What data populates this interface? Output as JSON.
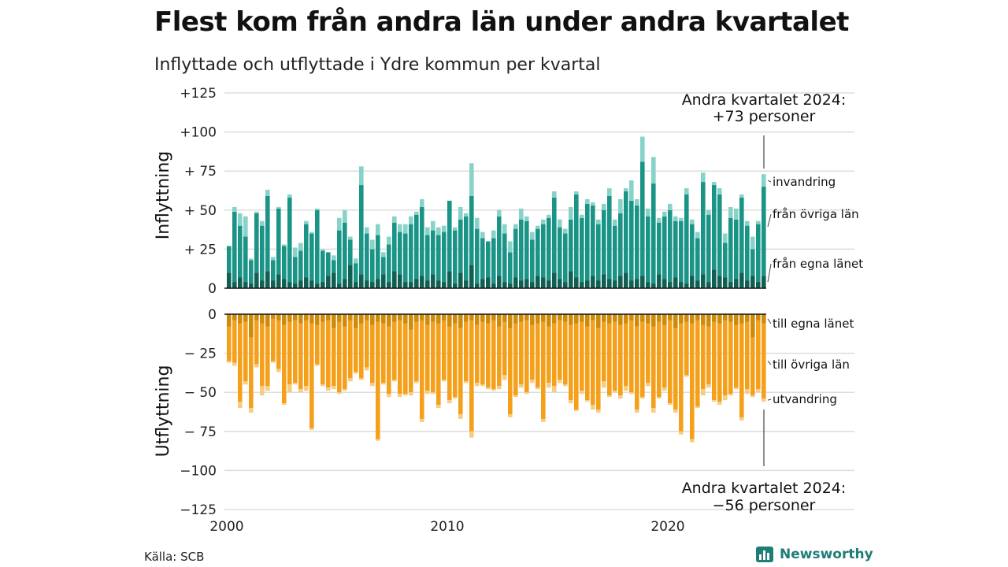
{
  "chart_data": {
    "type": "bar",
    "stacked": true,
    "title": "Flest kom från andra län under andra kvartalet",
    "subtitle": "Inflyttade och utflyttade i Ydre kommun per kvartal",
    "source": "Källa: SCB",
    "brand": "Newsworthy",
    "x_ticks": [
      "2000",
      "2010",
      "2020"
    ],
    "quarters_start": "2000 Q1",
    "quarters_end": "2024 Q2",
    "inflow": {
      "ylabel": "Inflyttning",
      "ylim": [
        0,
        125
      ],
      "y_ticks": [
        {
          "value": 0,
          "label": "0"
        },
        {
          "value": 25,
          "label": "+ 25"
        },
        {
          "value": 50,
          "label": "+ 50"
        },
        {
          "value": 75,
          "label": "+ 75"
        },
        {
          "value": 100,
          "label": "+100"
        },
        {
          "value": 125,
          "label": "+125"
        }
      ],
      "annotation_line1": "Andra kvartalet 2024:",
      "annotation_line2": "+73 personer",
      "series": [
        {
          "name": "från egna länet",
          "color": "#115e52",
          "values": [
            10,
            4,
            7,
            4,
            3,
            10,
            5,
            11,
            5,
            9,
            6,
            4,
            3,
            5,
            7,
            5,
            3,
            4,
            8,
            10,
            3,
            6,
            15,
            4,
            9,
            5,
            4,
            6,
            9,
            4,
            11,
            9,
            4,
            4,
            6,
            8,
            5,
            9,
            5,
            4,
            11,
            3,
            10,
            5,
            15,
            3,
            6,
            7,
            3,
            8,
            4,
            3,
            7,
            5,
            6,
            4,
            8,
            7,
            5,
            10,
            6,
            4,
            11,
            7,
            4,
            5,
            8,
            5,
            9,
            6,
            5,
            8,
            10,
            5,
            6,
            8,
            4,
            3,
            9,
            6,
            4,
            7,
            4,
            3,
            8,
            5,
            9,
            4,
            12,
            8,
            7,
            4,
            6,
            10,
            5,
            8,
            4,
            8
          ]
        },
        {
          "name": "från övriga län",
          "color": "#1a9486",
          "values": [
            17,
            45,
            33,
            29,
            15,
            38,
            35,
            48,
            13,
            42,
            21,
            54,
            17,
            19,
            34,
            30,
            47,
            20,
            15,
            8,
            34,
            36,
            16,
            12,
            57,
            30,
            21,
            28,
            11,
            24,
            31,
            27,
            31,
            37,
            41,
            44,
            29,
            28,
            29,
            32,
            45,
            34,
            34,
            41,
            44,
            35,
            26,
            23,
            29,
            38,
            31,
            20,
            31,
            39,
            37,
            27,
            30,
            34,
            40,
            48,
            33,
            31,
            33,
            53,
            41,
            49,
            45,
            36,
            41,
            53,
            35,
            40,
            52,
            51,
            47,
            73,
            42,
            64,
            33,
            40,
            46,
            36,
            39,
            57,
            33,
            27,
            59,
            43,
            54,
            52,
            22,
            41,
            38,
            48,
            35,
            17,
            37,
            57
          ]
        },
        {
          "name": "invandring",
          "color": "#88d3c9",
          "values": [
            0,
            3,
            8,
            13,
            1,
            1,
            3,
            4,
            2,
            1,
            1,
            2,
            6,
            5,
            2,
            1,
            1,
            1,
            0,
            3,
            8,
            8,
            2,
            3,
            12,
            4,
            6,
            7,
            3,
            5,
            4,
            5,
            6,
            5,
            2,
            5,
            5,
            6,
            5,
            4,
            0,
            2,
            8,
            2,
            21,
            7,
            4,
            0,
            5,
            4,
            6,
            7,
            3,
            7,
            3,
            5,
            2,
            3,
            2,
            4,
            5,
            3,
            8,
            2,
            2,
            3,
            2,
            3,
            4,
            5,
            4,
            9,
            2,
            13,
            4,
            16,
            5,
            17,
            3,
            3,
            4,
            3,
            2,
            4,
            3,
            4,
            6,
            3,
            2,
            4,
            6,
            7,
            7,
            2,
            3,
            8,
            2,
            8
          ]
        }
      ]
    },
    "outflow": {
      "ylabel": "Utflyttning",
      "ylim": [
        -125,
        0
      ],
      "y_ticks": [
        {
          "value": 0,
          "label": "0"
        },
        {
          "value": -25,
          "label": "− 25"
        },
        {
          "value": -50,
          "label": "− 50"
        },
        {
          "value": -75,
          "label": "− 75"
        },
        {
          "value": -100,
          "label": "−100"
        },
        {
          "value": -125,
          "label": "−125"
        }
      ],
      "annotation_line1": "Andra kvartalet 2024:",
      "annotation_line2": "−56 personer",
      "series": [
        {
          "name": "till egna länet",
          "color": "#cf8a0a",
          "values": [
            -8,
            -4,
            -6,
            -5,
            -15,
            -4,
            -6,
            -8,
            -3,
            -4,
            -7,
            -5,
            -4,
            -6,
            -4,
            -6,
            -7,
            -5,
            -4,
            -9,
            -5,
            -8,
            -4,
            -9,
            -6,
            -4,
            -7,
            -5,
            -6,
            -8,
            -5,
            -4,
            -6,
            -10,
            -5,
            -4,
            -7,
            -5,
            -6,
            -4,
            -8,
            -6,
            -9,
            -5,
            -4,
            -7,
            -5,
            -6,
            -4,
            -8,
            -5,
            -9,
            -6,
            -5,
            -4,
            -7,
            -6,
            -5,
            -8,
            -6,
            -4,
            -5,
            -7,
            -6,
            -5,
            -8,
            -4,
            -9,
            -5,
            -6,
            -5,
            -7,
            -6,
            -4,
            -8,
            -5,
            -6,
            -8,
            -5,
            -7,
            -4,
            -9,
            -6,
            -5,
            -6,
            -4,
            -7,
            -8,
            -5,
            -6,
            -4,
            -5,
            -7,
            -6,
            -5,
            -15,
            -4,
            -6
          ]
        },
        {
          "name": "till övriga län",
          "color": "#f5a01a",
          "values": [
            -22,
            -27,
            -50,
            -38,
            -45,
            -28,
            -40,
            -38,
            -27,
            -31,
            -50,
            -40,
            -40,
            -42,
            -42,
            -67,
            -25,
            -40,
            -43,
            -37,
            -45,
            -40,
            -37,
            -28,
            -35,
            -30,
            -37,
            -75,
            -38,
            -43,
            -37,
            -47,
            -45,
            -40,
            -38,
            -63,
            -42,
            -45,
            -52,
            -38,
            -47,
            -47,
            -55,
            -38,
            -71,
            -37,
            -40,
            -41,
            -44,
            -38,
            -34,
            -55,
            -46,
            -40,
            -46,
            -35,
            -41,
            -62,
            -36,
            -40,
            -38,
            -40,
            -48,
            -55,
            -44,
            -47,
            -54,
            -52,
            -38,
            -46,
            -44,
            -45,
            -40,
            -46,
            -53,
            -48,
            -38,
            -52,
            -48,
            -40,
            -53,
            -52,
            -69,
            -34,
            -74,
            -55,
            -41,
            -37,
            -50,
            -50,
            -48,
            -46,
            -40,
            -60,
            -43,
            -37,
            -44,
            -48
          ]
        },
        {
          "name": "utvandring",
          "color": "#f8cc82",
          "values": [
            -1,
            -2,
            -4,
            -2,
            -3,
            -2,
            -6,
            -3,
            -1,
            -2,
            -1,
            -5,
            -1,
            -2,
            -3,
            -1,
            -1,
            -1,
            -2,
            -2,
            -1,
            -1,
            -2,
            -1,
            -1,
            -2,
            -2,
            -1,
            -1,
            -2,
            -1,
            -2,
            -1,
            -2,
            -1,
            -2,
            -2,
            -1,
            -2,
            -1,
            -2,
            -1,
            -3,
            -1,
            -4,
            -2,
            -1,
            -1,
            -1,
            -2,
            -3,
            -2,
            -1,
            -2,
            -1,
            -2,
            -1,
            -2,
            -3,
            -4,
            -2,
            -1,
            -2,
            -1,
            -2,
            -1,
            -3,
            -2,
            -4,
            -1,
            -1,
            -2,
            -3,
            -1,
            -2,
            -1,
            -2,
            -3,
            -1,
            -2,
            -1,
            -2,
            -2,
            -1,
            -2,
            -1,
            -4,
            -2,
            -1,
            -2,
            -3,
            -1,
            -1,
            -2,
            -3,
            -1,
            -2,
            -2
          ]
        }
      ]
    }
  }
}
